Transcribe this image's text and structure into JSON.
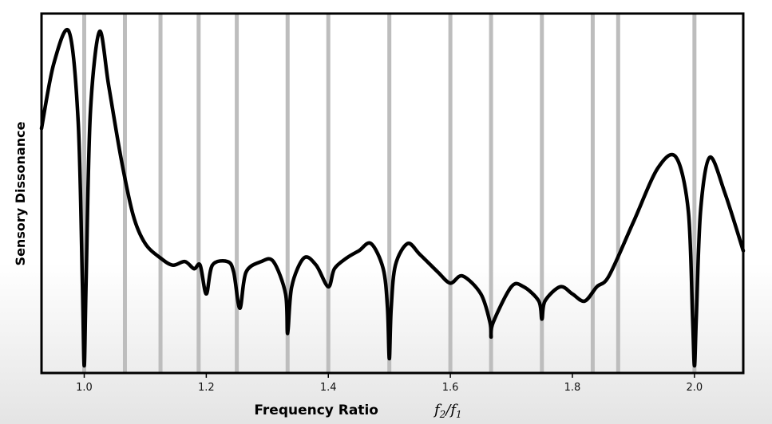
{
  "chart_data": {
    "type": "line",
    "xlabel": "Frequency Ratio",
    "xlabel_math": "f2/f1",
    "ylabel": "Sensory Dissonance",
    "xlim": [
      0.93,
      2.08
    ],
    "ylim": [
      0,
      1
    ],
    "grid": "vertical lines at simple ratios",
    "x_ticks": [
      {
        "value": 1.0,
        "label": "1.0"
      },
      {
        "value": 1.2,
        "label": "1.2"
      },
      {
        "value": 1.4,
        "label": "1.4"
      },
      {
        "value": 1.6,
        "label": "1.6"
      },
      {
        "value": 1.8,
        "label": "1.8"
      },
      {
        "value": 2.0,
        "label": "2.0"
      }
    ],
    "gridlines_x": [
      1.0,
      1.0667,
      1.125,
      1.1875,
      1.25,
      1.3333,
      1.4,
      1.5,
      1.6,
      1.6667,
      1.75,
      1.8333,
      1.875,
      2.0
    ],
    "series": [
      {
        "x": [
          0.93,
          0.95,
          0.975,
          0.99,
          0.997,
          1.0,
          1.003,
          1.01,
          1.025,
          1.04,
          1.06,
          1.08,
          1.1,
          1.125,
          1.145,
          1.165,
          1.18,
          1.19,
          1.2,
          1.21,
          1.235,
          1.245,
          1.255,
          1.265,
          1.29,
          1.31,
          1.33,
          1.3333,
          1.34,
          1.36,
          1.38,
          1.4,
          1.41,
          1.43,
          1.45,
          1.47,
          1.49,
          1.497,
          1.5,
          1.503,
          1.51,
          1.53,
          1.55,
          1.58,
          1.6,
          1.62,
          1.65,
          1.665,
          1.6667,
          1.67,
          1.7,
          1.72,
          1.745,
          1.75,
          1.755,
          1.78,
          1.8,
          1.82,
          1.84,
          1.86,
          1.9,
          1.94,
          1.97,
          1.99,
          1.997,
          2.0,
          2.003,
          2.01,
          2.025,
          2.05,
          2.08
        ],
        "y": [
          0.68,
          0.86,
          0.95,
          0.7,
          0.25,
          0.02,
          0.25,
          0.72,
          0.95,
          0.8,
          0.6,
          0.44,
          0.36,
          0.32,
          0.3,
          0.31,
          0.29,
          0.3,
          0.22,
          0.3,
          0.31,
          0.28,
          0.18,
          0.28,
          0.31,
          0.31,
          0.22,
          0.11,
          0.24,
          0.32,
          0.3,
          0.24,
          0.29,
          0.32,
          0.34,
          0.36,
          0.29,
          0.18,
          0.04,
          0.18,
          0.3,
          0.36,
          0.33,
          0.28,
          0.25,
          0.27,
          0.22,
          0.14,
          0.1,
          0.14,
          0.24,
          0.24,
          0.2,
          0.15,
          0.2,
          0.24,
          0.22,
          0.2,
          0.24,
          0.27,
          0.42,
          0.57,
          0.6,
          0.45,
          0.15,
          0.02,
          0.15,
          0.45,
          0.6,
          0.5,
          0.34
        ]
      }
    ]
  }
}
